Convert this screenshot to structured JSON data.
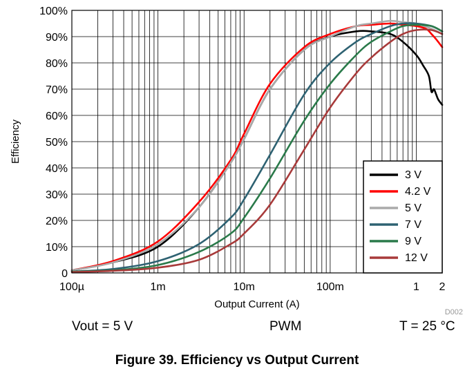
{
  "chart_data": {
    "type": "line",
    "title": "",
    "xlabel": "Output Current (A)",
    "ylabel": "Efficiency",
    "x_scale": "log",
    "xlim": [
      0.0001,
      2
    ],
    "ylim": [
      0,
      100
    ],
    "grid": true,
    "legend_position": "bottom-right",
    "x_ticks": [
      {
        "value": 0.0001,
        "label": "100µ"
      },
      {
        "value": 0.001,
        "label": "1m"
      },
      {
        "value": 0.01,
        "label": "10m"
      },
      {
        "value": 0.1,
        "label": "100m"
      },
      {
        "value": 1,
        "label": "1"
      },
      {
        "value": 2,
        "label": "2"
      }
    ],
    "y_ticks": [
      {
        "value": 0,
        "label": "0"
      },
      {
        "value": 10,
        "label": "10%"
      },
      {
        "value": 20,
        "label": "20%"
      },
      {
        "value": 30,
        "label": "30%"
      },
      {
        "value": 40,
        "label": "40%"
      },
      {
        "value": 50,
        "label": "50%"
      },
      {
        "value": 60,
        "label": "60%"
      },
      {
        "value": 70,
        "label": "70%"
      },
      {
        "value": 80,
        "label": "80%"
      },
      {
        "value": 90,
        "label": "90%"
      },
      {
        "value": 100,
        "label": "100%"
      }
    ],
    "series": [
      {
        "name": "3 V",
        "color": "#000000",
        "x": [
          0.0001,
          0.0003,
          0.001,
          0.003,
          0.007,
          0.01,
          0.02,
          0.05,
          0.1,
          0.2,
          0.3,
          0.5,
          0.7,
          1.0,
          1.2,
          1.4,
          1.5,
          1.6,
          1.7,
          1.8,
          2.0
        ],
        "y": [
          1,
          4,
          10,
          25,
          42,
          51,
          70,
          85,
          90,
          92,
          92,
          91,
          88,
          83,
          79,
          75,
          69,
          70,
          68,
          66,
          64
        ]
      },
      {
        "name": "4.2 V",
        "color": "#ff0000",
        "x": [
          0.0001,
          0.0003,
          0.001,
          0.003,
          0.007,
          0.01,
          0.02,
          0.05,
          0.1,
          0.2,
          0.3,
          0.5,
          0.7,
          1.0,
          1.3,
          1.5,
          1.7,
          2.0
        ],
        "y": [
          1,
          4.5,
          12,
          27,
          43,
          53,
          72,
          86,
          91,
          94,
          94.5,
          95,
          94.5,
          94,
          93,
          91,
          89,
          86
        ]
      },
      {
        "name": "5 V",
        "color": "#aaaaaa",
        "x": [
          0.0001,
          0.0003,
          0.001,
          0.003,
          0.007,
          0.01,
          0.02,
          0.05,
          0.1,
          0.2,
          0.3,
          0.5,
          0.7,
          1.0,
          1.5,
          2.0
        ],
        "y": [
          1,
          4,
          11,
          25,
          42,
          51,
          70,
          85,
          90,
          94,
          95,
          96,
          95.5,
          95,
          93,
          91
        ]
      },
      {
        "name": "7 V",
        "color": "#2e6272",
        "x": [
          0.0001,
          0.0003,
          0.001,
          0.003,
          0.007,
          0.01,
          0.02,
          0.05,
          0.1,
          0.2,
          0.3,
          0.5,
          0.7,
          1.0,
          1.5,
          2.0
        ],
        "y": [
          0.5,
          1.5,
          4.5,
          11,
          21,
          28,
          45,
          68,
          80,
          88,
          91,
          94,
          95,
          95,
          94,
          92
        ]
      },
      {
        "name": "9 V",
        "color": "#2a7a4a",
        "x": [
          0.0001,
          0.0003,
          0.001,
          0.003,
          0.007,
          0.01,
          0.02,
          0.05,
          0.1,
          0.2,
          0.3,
          0.5,
          0.7,
          1.0,
          1.5,
          2.0
        ],
        "y": [
          0.5,
          1,
          3,
          8,
          15,
          21,
          36,
          58,
          72,
          83,
          88,
          92,
          94,
          94.5,
          94,
          92
        ]
      },
      {
        "name": "12 V",
        "color": "#a83a3a",
        "x": [
          0.0001,
          0.0003,
          0.001,
          0.003,
          0.007,
          0.01,
          0.02,
          0.05,
          0.1,
          0.2,
          0.3,
          0.5,
          0.7,
          1.0,
          1.5,
          2.0
        ],
        "y": [
          0.3,
          0.8,
          2,
          5,
          11,
          15,
          26,
          47,
          63,
          76,
          82,
          88,
          91,
          92.5,
          92.5,
          91
        ]
      }
    ],
    "watermark": "D002"
  },
  "annotations": {
    "left": "Vout = 5 V",
    "middle": "PWM",
    "right": "T = 25 °C"
  },
  "caption": "Figure 39. Efficiency vs Output Current"
}
